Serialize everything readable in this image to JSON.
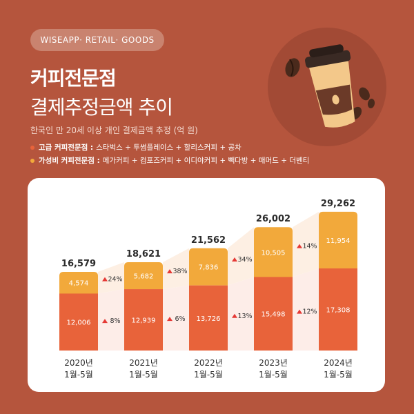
{
  "header": {
    "badge": "WISEAPP· RETAIL· GOODS",
    "title_main": "커피전문점",
    "title_sub": "결제추정금액 추이",
    "subtitle": "한국인 만 20세 이상 개인 결제금액 추정 (억 원)"
  },
  "legend": [
    {
      "name": "고급 커피전문점 :",
      "desc": "스타벅스 + 투썸플레이스 + 할리스커피 + 공차",
      "color": "#E8633A"
    },
    {
      "name": "가성비 커피전문점 :",
      "desc": "메가커피 + 컴포즈커피 + 이디야커피 + 빽다방 + 매머드 + 더벤티",
      "color": "#F2A93B"
    }
  ],
  "colors": {
    "background": "#B5553D",
    "premium": "#E8633A",
    "value": "#F2A93B",
    "band_premium": "#FDEDE8",
    "band_value": "#FDEFE3",
    "up_arrow": "#E53935"
  },
  "chart_data": {
    "type": "bar",
    "stacked": true,
    "categories": [
      [
        "2020년",
        "1월-5월"
      ],
      [
        "2021년",
        "1월-5월"
      ],
      [
        "2022년",
        "1월-5월"
      ],
      [
        "2023년",
        "1월-5월"
      ],
      [
        "2024년",
        "1월-5월"
      ]
    ],
    "series": [
      {
        "name": "고급 커피전문점",
        "values": [
          12006,
          12939,
          13726,
          15498,
          17308
        ]
      },
      {
        "name": "가성비 커피전문점",
        "values": [
          4574,
          5682,
          7836,
          10505,
          11954
        ]
      }
    ],
    "totals": [
      "16,579",
      "18,621",
      "21,562",
      "26,002",
      "29,262"
    ],
    "value_labels": {
      "premium": [
        "12,006",
        "12,939",
        "13,726",
        "15,498",
        "17,308"
      ],
      "value": [
        "4,574",
        "5,682",
        "7,836",
        "10,505",
        "11,954"
      ]
    },
    "growth_premium": [
      "8%",
      "6%",
      "13%",
      "12%"
    ],
    "growth_value": [
      "24%",
      "38%",
      "34%",
      "14%"
    ],
    "ylim": [
      0,
      32000
    ]
  }
}
